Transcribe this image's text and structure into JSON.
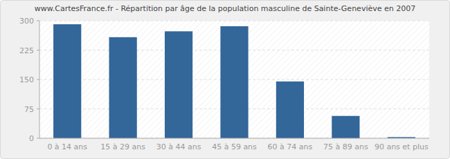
{
  "chart_data": {
    "type": "bar",
    "title": "www.CartesFrance.fr - Répartition par âge de la population masculine de Sainte-Geneviève en 2007",
    "categories": [
      "0 à 14 ans",
      "15 à 29 ans",
      "30 à 44 ans",
      "45 à 59 ans",
      "60 à 74 ans",
      "75 à 89 ans",
      "90 ans et plus"
    ],
    "values": [
      291,
      258,
      273,
      286,
      145,
      57,
      3
    ],
    "color": "#336699",
    "ylim": [
      0,
      300
    ],
    "yticks": [
      0,
      75,
      150,
      225,
      300
    ],
    "grid": true
  }
}
